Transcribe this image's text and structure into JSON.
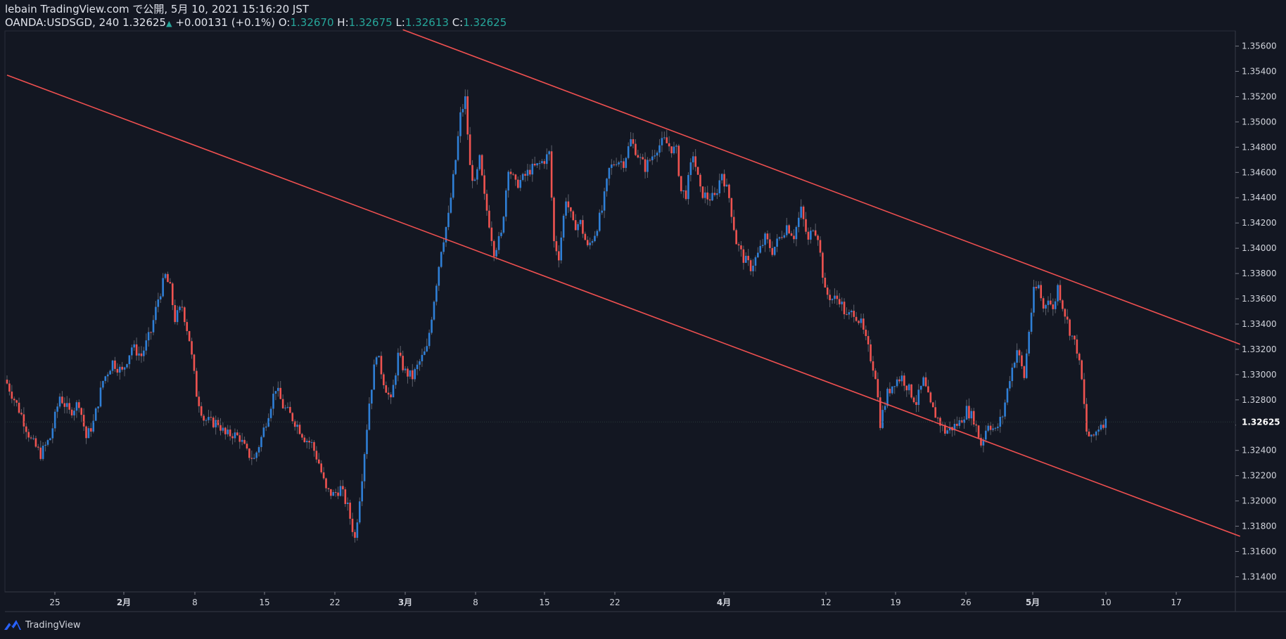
{
  "header": {
    "title": "lebain TradingView.com で公開, 5月 10, 2021 15:16:20 JST",
    "symbol": "OANDA:USDSGD, 240",
    "last": "1.32625",
    "change": "+0.00131 (+0.1%)",
    "o_label": "O:",
    "o_value": "1.32670",
    "h_label": "H:",
    "h_value": "1.32675",
    "l_label": "L:",
    "l_value": "1.32613",
    "c_label": "C:",
    "c_value": "1.32625"
  },
  "footer": {
    "brand": "TradingView"
  },
  "colors": {
    "background": "#131722",
    "up": "#2f7fd6",
    "down": "#ef5350",
    "trendline": "#f05050",
    "axis_text": "#d1d4dc"
  },
  "chart_data": {
    "type": "candlestick",
    "symbol": "OANDA:USDSGD",
    "interval": "240",
    "ylim": [
      1.3128,
      1.3572
    ],
    "x_ticks": [
      "25",
      "2月",
      "8",
      "15",
      "22",
      "3月",
      "8",
      "15",
      "22",
      "4月",
      "12",
      "19",
      "26",
      "5月",
      "10",
      "17"
    ],
    "y_ticks": [
      "1.35600",
      "1.35400",
      "1.35200",
      "1.35000",
      "1.34800",
      "1.34600",
      "1.34400",
      "1.34200",
      "1.34000",
      "1.33800",
      "1.33600",
      "1.33400",
      "1.33200",
      "1.33000",
      "1.32800",
      "1.32600",
      "1.32400",
      "1.32200",
      "1.32000",
      "1.31800",
      "1.31600",
      "1.31400"
    ],
    "last_price_label": "1.32625",
    "price_path": [
      [
        0,
        1.3293
      ],
      [
        6,
        1.3268
      ],
      [
        10,
        1.3248
      ],
      [
        14,
        1.3237
      ],
      [
        18,
        1.325
      ],
      [
        22,
        1.3283
      ],
      [
        26,
        1.327
      ],
      [
        30,
        1.3278
      ],
      [
        33,
        1.325
      ],
      [
        36,
        1.3262
      ],
      [
        40,
        1.3295
      ],
      [
        44,
        1.331
      ],
      [
        48,
        1.3302
      ],
      [
        52,
        1.3322
      ],
      [
        56,
        1.3315
      ],
      [
        60,
        1.3334
      ],
      [
        63,
        1.336
      ],
      [
        66,
        1.3378
      ],
      [
        68,
        1.3368
      ],
      [
        70,
        1.3344
      ],
      [
        73,
        1.3354
      ],
      [
        76,
        1.3328
      ],
      [
        79,
        1.3285
      ],
      [
        82,
        1.3265
      ],
      [
        85,
        1.3262
      ],
      [
        88,
        1.3262
      ],
      [
        91,
        1.3252
      ],
      [
        94,
        1.3253
      ],
      [
        97,
        1.325
      ],
      [
        100,
        1.3238
      ],
      [
        103,
        1.3233
      ],
      [
        106,
        1.325
      ],
      [
        109,
        1.327
      ],
      [
        112,
        1.329
      ],
      [
        115,
        1.3275
      ],
      [
        118,
        1.3268
      ],
      [
        121,
        1.326
      ],
      [
        124,
        1.325
      ],
      [
        127,
        1.3245
      ],
      [
        130,
        1.323
      ],
      [
        133,
        1.3208
      ],
      [
        136,
        1.3205
      ],
      [
        139,
        1.321
      ],
      [
        142,
        1.3195
      ],
      [
        145,
        1.317
      ],
      [
        148,
        1.322
      ],
      [
        151,
        1.3278
      ],
      [
        154,
        1.3318
      ],
      [
        157,
        1.3295
      ],
      [
        160,
        1.3278
      ],
      [
        163,
        1.3315
      ],
      [
        166,
        1.3302
      ],
      [
        169,
        1.3298
      ],
      [
        172,
        1.331
      ],
      [
        175,
        1.332
      ],
      [
        178,
        1.336
      ],
      [
        181,
        1.34
      ],
      [
        184,
        1.3425
      ],
      [
        187,
        1.347
      ],
      [
        189,
        1.3505
      ],
      [
        191,
        1.3518
      ],
      [
        193,
        1.3464
      ],
      [
        195,
        1.345
      ],
      [
        197,
        1.347
      ],
      [
        199,
        1.344
      ],
      [
        201,
        1.342
      ],
      [
        203,
        1.3398
      ],
      [
        206,
        1.341
      ],
      [
        209,
        1.3465
      ],
      [
        212,
        1.345
      ],
      [
        215,
        1.3455
      ],
      [
        218,
        1.3462
      ],
      [
        221,
        1.3465
      ],
      [
        224,
        1.347
      ],
      [
        226,
        1.3475
      ],
      [
        228,
        1.3405
      ],
      [
        230,
        1.3394
      ],
      [
        233,
        1.344
      ],
      [
        236,
        1.3418
      ],
      [
        239,
        1.342
      ],
      [
        242,
        1.34
      ],
      [
        245,
        1.3412
      ],
      [
        248,
        1.343
      ],
      [
        251,
        1.3462
      ],
      [
        254,
        1.347
      ],
      [
        257,
        1.3468
      ],
      [
        260,
        1.3485
      ],
      [
        262,
        1.3478
      ],
      [
        264,
        1.347
      ],
      [
        266,
        1.3464
      ],
      [
        268,
        1.347
      ],
      [
        271,
        1.348
      ],
      [
        274,
        1.3485
      ],
      [
        277,
        1.3479
      ],
      [
        279,
        1.3477
      ],
      [
        281,
        1.3445
      ],
      [
        283,
        1.3443
      ],
      [
        286,
        1.3475
      ],
      [
        289,
        1.3445
      ],
      [
        292,
        1.344
      ],
      [
        295,
        1.344
      ],
      [
        298,
        1.346
      ],
      [
        301,
        1.344
      ],
      [
        304,
        1.3405
      ],
      [
        307,
        1.3392
      ],
      [
        310,
        1.3385
      ],
      [
        313,
        1.3395
      ],
      [
        316,
        1.3408
      ],
      [
        319,
        1.3398
      ],
      [
        322,
        1.3408
      ],
      [
        325,
        1.3418
      ],
      [
        328,
        1.341
      ],
      [
        331,
        1.343
      ],
      [
        334,
        1.3405
      ],
      [
        336,
        1.3418
      ],
      [
        338,
        1.341
      ],
      [
        341,
        1.3365
      ],
      [
        344,
        1.336
      ],
      [
        347,
        1.336
      ],
      [
        350,
        1.3345
      ],
      [
        353,
        1.335
      ],
      [
        356,
        1.334
      ],
      [
        359,
        1.332
      ],
      [
        362,
        1.33
      ],
      [
        364,
        1.3262
      ],
      [
        367,
        1.3285
      ],
      [
        370,
        1.3295
      ],
      [
        373,
        1.3298
      ],
      [
        376,
        1.3288
      ],
      [
        379,
        1.3278
      ],
      [
        382,
        1.3295
      ],
      [
        385,
        1.3275
      ],
      [
        388,
        1.3265
      ],
      [
        391,
        1.3255
      ],
      [
        394,
        1.3258
      ],
      [
        397,
        1.3262
      ],
      [
        400,
        1.3272
      ],
      [
        403,
        1.3265
      ],
      [
        406,
        1.3245
      ],
      [
        409,
        1.3262
      ],
      [
        412,
        1.3255
      ],
      [
        415,
        1.3268
      ],
      [
        418,
        1.3298
      ],
      [
        421,
        1.332
      ],
      [
        424,
        1.3298
      ],
      [
        426,
        1.3335
      ],
      [
        428,
        1.3365
      ],
      [
        430,
        1.337
      ],
      [
        432,
        1.3352
      ],
      [
        434,
        1.3362
      ],
      [
        436,
        1.335
      ],
      [
        438,
        1.337
      ],
      [
        440,
        1.3355
      ],
      [
        443,
        1.3335
      ],
      [
        446,
        1.332
      ],
      [
        448,
        1.3295
      ],
      [
        450,
        1.3255
      ],
      [
        452,
        1.3248
      ],
      [
        454,
        1.3255
      ],
      [
        456,
        1.3262
      ],
      [
        458,
        1.32625
      ]
    ],
    "trendlines": [
      {
        "name": "",
        "from": [
          0,
          1.3537
        ],
        "to": [
          514,
          1.3172
        ]
      },
      {
        "name": "",
        "from": [
          165,
          1.3573
        ],
        "to": [
          514,
          1.3324
        ]
      }
    ]
  }
}
